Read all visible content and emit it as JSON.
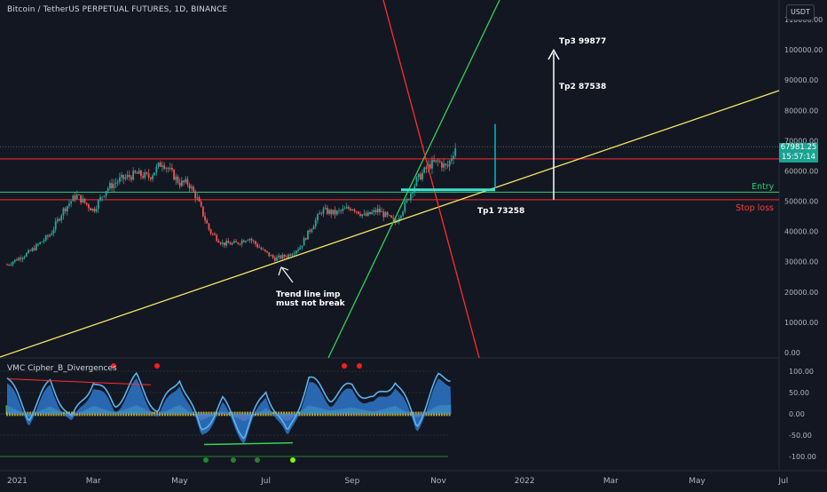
{
  "header": {
    "title": "Bitcoin / TetherUS PERPETUAL FUTURES, 1D, BINANCE",
    "currency_badge": "USDT"
  },
  "price_tag": {
    "price": "67981.25",
    "countdown": "15:57:14"
  },
  "indicator": {
    "name": "VMC Cipher_B_Divergences"
  },
  "annotations": {
    "tp3": "Tp3 99877",
    "tp2": "Tp2 87538",
    "tp1": "Tp1 73258",
    "entry": "Entry",
    "stop_loss": "Stop loss",
    "trend_note_line1": "Trend line imp",
    "trend_note_line2": "must not break"
  },
  "colors": {
    "background": "#131722",
    "up_candle": "#26a69a",
    "down_candle": "#ef5350",
    "yellow_line": "#f5e663",
    "green_line": "#33d158",
    "red_line": "#ff2d2d",
    "entry_line": "#26d07c",
    "target_line": "#00bcd4",
    "wave_blue": "#2f7dd6",
    "wave_light": "#5ab4f0"
  },
  "chart_data": [
    {
      "type": "line",
      "title": "Bitcoin / TetherUS PERPETUAL FUTURES, 1D, BINANCE",
      "ylabel": "USDT",
      "ylim": [
        0,
        115000
      ],
      "y_ticks": [
        "110000.00",
        "100000.00",
        "90000.00",
        "80000.00",
        "70000.00",
        "60000.00",
        "50000.00",
        "40000.00",
        "30000.00",
        "20000.00",
        "10000.00",
        "0.00"
      ],
      "x_ticks": [
        "2021",
        "Mar",
        "May",
        "Jul",
        "Sep",
        "Nov",
        "2022",
        "Mar",
        "May",
        "Jul"
      ],
      "x_tick_months": [
        0,
        2,
        4,
        6,
        8,
        10,
        12,
        14,
        16,
        18
      ],
      "x_unit": "months since Jan 2021",
      "series": [
        {
          "x": [
            0,
            0.5,
            1,
            1.3,
            1.6,
            2,
            2.3,
            2.6,
            3,
            3.3,
            3.6,
            4,
            4.2,
            4.4,
            4.7,
            5,
            5.3,
            5.6,
            5.9,
            6.2,
            6.5,
            6.8,
            7,
            7.3,
            7.6,
            8,
            8.3,
            8.6,
            9,
            9.2,
            9.5,
            9.8,
            10,
            10.2,
            10.4
          ],
          "y": [
            29000,
            33000,
            39000,
            47000,
            52000,
            47000,
            54000,
            57000,
            59000,
            58000,
            63000,
            56000,
            56000,
            51000,
            40000,
            36000,
            36000,
            38000,
            34000,
            31000,
            32000,
            35000,
            40000,
            47000,
            46000,
            48000,
            45000,
            47000,
            43000,
            48000,
            57000,
            62000,
            63000,
            61000,
            67981
          ]
        }
      ],
      "horizontal_levels": [
        {
          "label": "Entry",
          "value": 53000
        },
        {
          "label": "Stop loss",
          "value": 50500
        },
        {
          "label": "",
          "value": 64000
        }
      ],
      "targets": [
        {
          "label": "Tp1 73258",
          "value": 73258
        },
        {
          "label": "Tp2 87538",
          "value": 87538
        },
        {
          "label": "Tp3 99877",
          "value": 99877
        }
      ],
      "grid": false
    },
    {
      "type": "area",
      "title": "VMC Cipher_B_Divergences",
      "ylim": [
        -120,
        120
      ],
      "y_ticks": [
        "100.00",
        "50.00",
        "0.00",
        "-50.00",
        "-100.00"
      ],
      "series": [
        {
          "name": "",
          "x": [
            0,
            0.5,
            1,
            1.5,
            2,
            2.5,
            3,
            3.5,
            4,
            4.5,
            5,
            5.5,
            6,
            6.5,
            7,
            7.5,
            8,
            8.5,
            9,
            9.5,
            10,
            10.3
          ],
          "y": [
            80,
            -20,
            70,
            -30,
            75,
            10,
            80,
            -10,
            85,
            -60,
            20,
            -70,
            50,
            -70,
            80,
            30,
            60,
            20,
            75,
            -40,
            80,
            85
          ]
        }
      ]
    }
  ]
}
